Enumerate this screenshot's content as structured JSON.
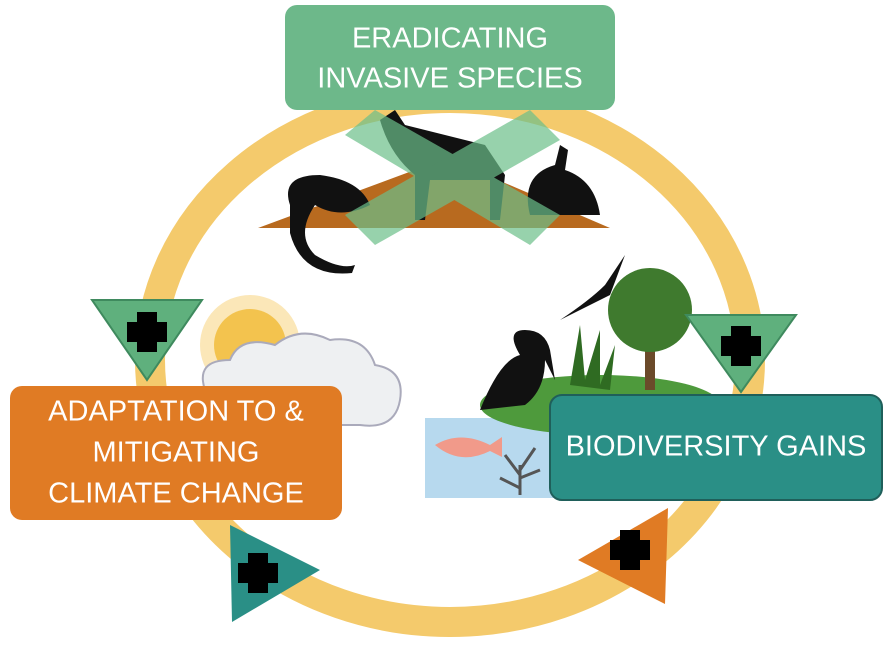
{
  "nodes": [
    {
      "lines": [
        "ERADICATING",
        "INVASIVE SPECIES"
      ]
    },
    {
      "lines": [
        "ADAPTATION TO &",
        "MITIGATING",
        "CLIMATE CHANGE"
      ]
    },
    {
      "lines": [
        "BIODIVERSITY GAINS"
      ]
    }
  ]
}
